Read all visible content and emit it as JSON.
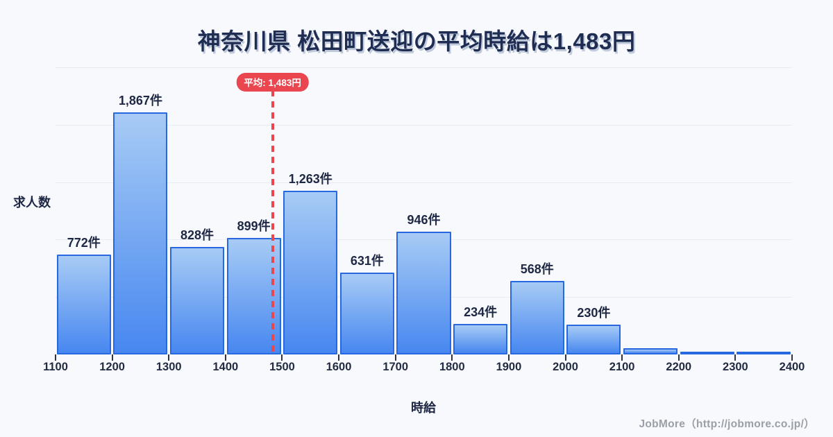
{
  "page": {
    "title": "神奈川県 松田町送迎の平均時給は1,483円",
    "footer_credit": "JobMore（http://jobmore.co.jp/）"
  },
  "chart_data": {
    "type": "bar",
    "title": "神奈川県 松田町送迎の平均時給は1,483円",
    "xlabel": "時給",
    "ylabel": "求人数",
    "x_range": [
      1100,
      2400
    ],
    "bin_width": 100,
    "x_tick_labels": [
      "1100",
      "1200",
      "1300",
      "1400",
      "1500",
      "1600",
      "1700",
      "1800",
      "1900",
      "2000",
      "2100",
      "2200",
      "2300",
      "2400"
    ],
    "categories": [
      "1100-1200",
      "1200-1300",
      "1300-1400",
      "1400-1500",
      "1500-1600",
      "1600-1700",
      "1700-1800",
      "1800-1900",
      "1900-2000",
      "2000-2100",
      "2100-2200",
      "2200-2300",
      "2300-2400"
    ],
    "values": [
      772,
      1867,
      828,
      899,
      1263,
      631,
      946,
      234,
      568,
      230,
      50,
      18,
      22
    ],
    "bar_labels": [
      "772件",
      "1,867件",
      "828件",
      "899件",
      "1,263件",
      "631件",
      "946件",
      "234件",
      "568件",
      "230件",
      "",
      "",
      ""
    ],
    "ylim": [
      0,
      2215
    ],
    "grid": true,
    "legend": false,
    "average": {
      "value": 1483,
      "label": "平均: 1,483円"
    },
    "colors": {
      "background": "#f7f9fc",
      "bar_fill_top": "#a7cbf5",
      "bar_fill_bottom": "#4787f0",
      "bar_border": "#2767e0",
      "average_line": "#e9464f",
      "badge_background": "#e9464f",
      "badge_text": "#ffffff",
      "title_text": "#1f2d52",
      "label_text": "#1e2844",
      "gridline": "#e7ecf4",
      "footer_text": "#9ba0a8"
    }
  }
}
